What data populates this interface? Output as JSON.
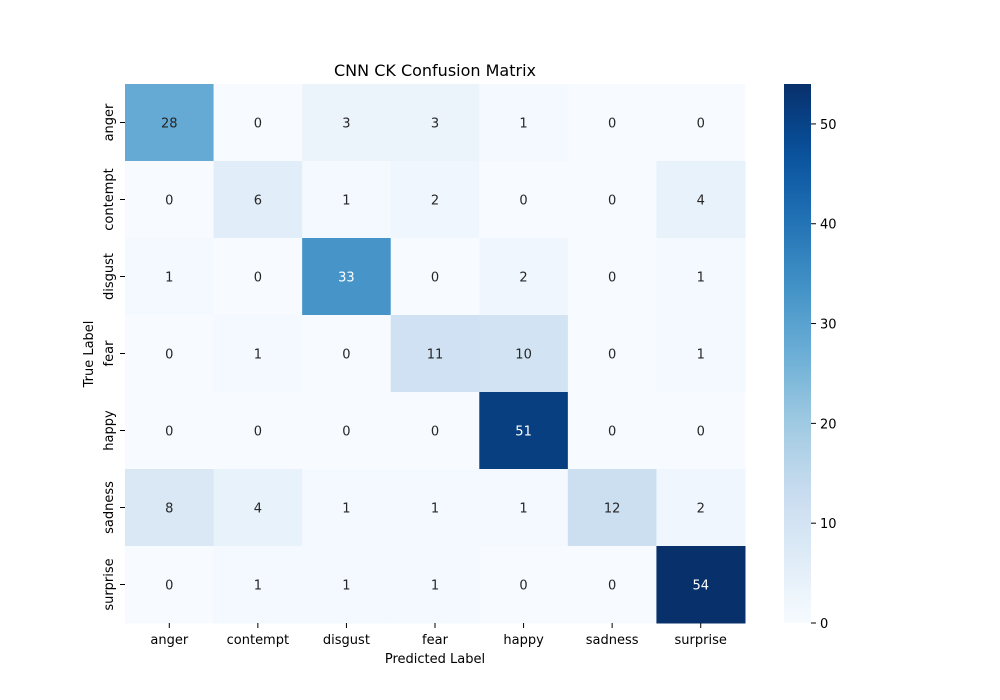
{
  "chart_data": {
    "type": "heatmap",
    "title": "CNN CK Confusion Matrix",
    "xlabel": "Predicted Label",
    "ylabel": "True Label",
    "x_categories": [
      "anger",
      "contempt",
      "disgust",
      "fear",
      "happy",
      "sadness",
      "surprise"
    ],
    "y_categories": [
      "anger",
      "contempt",
      "disgust",
      "fear",
      "happy",
      "sadness",
      "surprise"
    ],
    "values": [
      [
        28,
        0,
        3,
        3,
        1,
        0,
        0
      ],
      [
        0,
        6,
        1,
        2,
        0,
        0,
        4
      ],
      [
        1,
        0,
        33,
        0,
        2,
        0,
        1
      ],
      [
        0,
        1,
        0,
        11,
        10,
        0,
        1
      ],
      [
        0,
        0,
        0,
        0,
        51,
        0,
        0
      ],
      [
        8,
        4,
        1,
        1,
        1,
        12,
        2
      ],
      [
        0,
        1,
        1,
        1,
        0,
        0,
        54
      ]
    ],
    "colormap": "Blues",
    "colorbar": {
      "range": [
        0,
        54
      ],
      "ticks": [
        0,
        10,
        20,
        30,
        40,
        50
      ]
    }
  }
}
